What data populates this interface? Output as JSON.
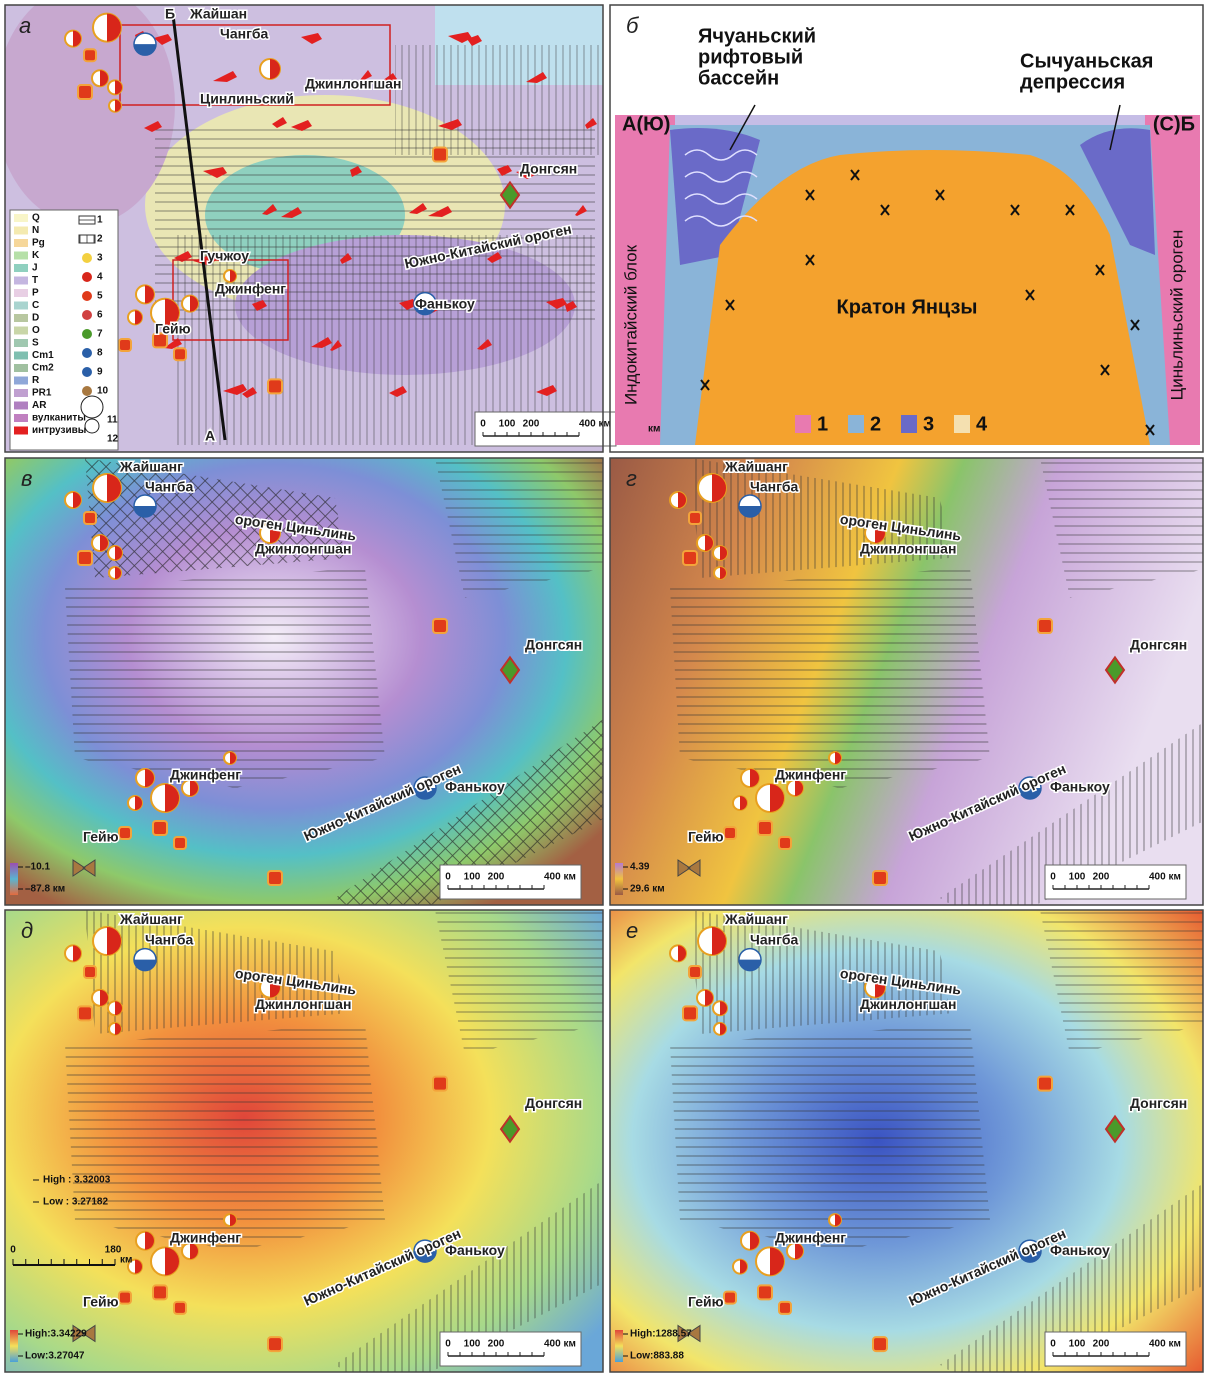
{
  "panels": [
    {
      "letter": "а",
      "places": [
        "Б",
        "Жайшан",
        "Чангба",
        "Цинлиньский",
        "Джинлонгшан",
        "Гучжоу",
        "Донгсян",
        "Южно-Китайский ороген",
        "Фанькоу",
        "Джинфенг",
        "Гейю",
        "А"
      ],
      "legend_units": [
        "Q",
        "N",
        "Pg",
        "K",
        "J",
        "T",
        "P",
        "C",
        "D",
        "O",
        "S",
        "Cm1",
        "Cm2",
        "R",
        "PR1",
        "AR",
        "вулканиты",
        "интрузивы"
      ],
      "legend_symbols": [
        "1",
        "2",
        "3",
        "4",
        "5",
        "6",
        "7",
        "8",
        "9",
        "10",
        "11",
        "12"
      ],
      "scale": [
        "0",
        "100",
        "200",
        "400 км"
      ]
    },
    {
      "letter": "б",
      "basin_label": [
        "Ячуаньский",
        "рифтовый",
        "бассейн"
      ],
      "depression_label": [
        "Сычуаньская",
        "депрессия"
      ],
      "left_end": "А(Ю)",
      "right_end": "(С)Б",
      "craton": "Кратон Янцзы",
      "left_block": "Индокитайский блок",
      "right_block": "Циньлиньский ороген",
      "unit": "км",
      "legend": [
        "1",
        "2",
        "3",
        "4"
      ]
    },
    {
      "letter": "в",
      "places": [
        "Жайшанг",
        "Чангба",
        "ороген Циньлинь",
        "Джинлонгшан",
        "Донгсян",
        "Джинфенг",
        "Фанькоу",
        "Гейю",
        "Южно-Китайский ороген"
      ],
      "legend": [
        "–10.1",
        "–87.8 км"
      ],
      "scale": [
        "0",
        "100",
        "200",
        "400 км"
      ]
    },
    {
      "letter": "г",
      "places": [
        "Жайшанг",
        "Чангба",
        "ороген Циньлинь",
        "Джинлонгшан",
        "Донгсян",
        "Джинфенг",
        "Фанькоу",
        "Гейю",
        "Южно-Китайский ороген"
      ],
      "legend": [
        "4.39",
        "29.6 км"
      ],
      "scale": [
        "0",
        "100",
        "200",
        "400 км"
      ]
    },
    {
      "letter": "д",
      "places": [
        "Жайшанг",
        "Чангба",
        "ороген Циньлинь",
        "Джинлонгшан",
        "Донгсян",
        "Джинфенг",
        "Фанькоу",
        "Гейю",
        "Южно-Китайский ороген"
      ],
      "inset_legend": [
        "High : 3.32003",
        "Low : 3.27182"
      ],
      "inset_scale": [
        "0",
        "180",
        "км"
      ],
      "legend": [
        "High:3.34229",
        "Low:3.27047"
      ],
      "scale": [
        "0",
        "100",
        "200",
        "400 км"
      ]
    },
    {
      "letter": "е",
      "places": [
        "Жайшанг",
        "Чангба",
        "ороген Циньлинь",
        "Джинлонгшан",
        "Донгсян",
        "Джинфенг",
        "Фанькоу",
        "Гейю",
        "Южно-Китайский ороген"
      ],
      "legend": [
        "High:1288.57",
        "Low:883.88"
      ],
      "scale": [
        "0",
        "100",
        "200",
        "400 км"
      ]
    }
  ]
}
